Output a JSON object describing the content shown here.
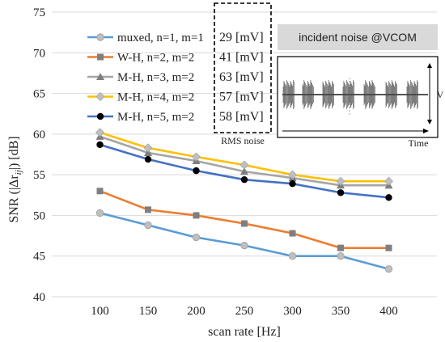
{
  "chart_data": {
    "type": "line",
    "xlabel": "scan rate [Hz]",
    "ylabel_prefix": "SNR (|Δr",
    "ylabel_sub": "ij",
    "ylabel_suffix": "|) [dB]",
    "x": [
      100,
      150,
      200,
      250,
      300,
      350,
      400
    ],
    "xlim": [
      50,
      450
    ],
    "ylim": [
      40,
      75
    ],
    "yticks": [
      40,
      45,
      50,
      55,
      60,
      65,
      70,
      75
    ],
    "grid": "horizontal",
    "series": [
      {
        "name": "muxed, n=1, m=1",
        "color": "#5B9BD5",
        "marker": "circle",
        "rms": "29 [mV]",
        "values": [
          50.3,
          48.8,
          47.3,
          46.3,
          45.0,
          45.0,
          43.4
        ]
      },
      {
        "name": "W-H, n=2, m=2",
        "color": "#ED7D31",
        "marker": "square",
        "rms": "41 [mV]",
        "values": [
          53.0,
          50.7,
          50.0,
          49.0,
          47.8,
          46.0,
          46.0
        ]
      },
      {
        "name": "M-H, n=3, m=2",
        "color": "#A5A5A5",
        "marker": "triangle",
        "rms": "63 [mV]",
        "values": [
          59.7,
          57.7,
          56.7,
          55.4,
          54.6,
          53.7,
          53.7
        ]
      },
      {
        "name": "M-H, n=4, m=2",
        "color": "#FFC000",
        "marker": "diamond",
        "rms": "57 [mV]",
        "values": [
          60.2,
          58.3,
          57.2,
          56.2,
          55.0,
          54.2,
          54.2
        ]
      },
      {
        "name": "M-H, n=5, m=2",
        "color": "#4472C4",
        "marker": "circle-black",
        "rms": "58 [mV]",
        "values": [
          58.7,
          56.9,
          55.5,
          54.4,
          53.9,
          52.8,
          52.2
        ]
      }
    ],
    "rms_caption": "RMS noise",
    "inset": {
      "title": "incident noise @VCOM",
      "xaxis_label": "Time",
      "yaxis_label": "V"
    }
  }
}
